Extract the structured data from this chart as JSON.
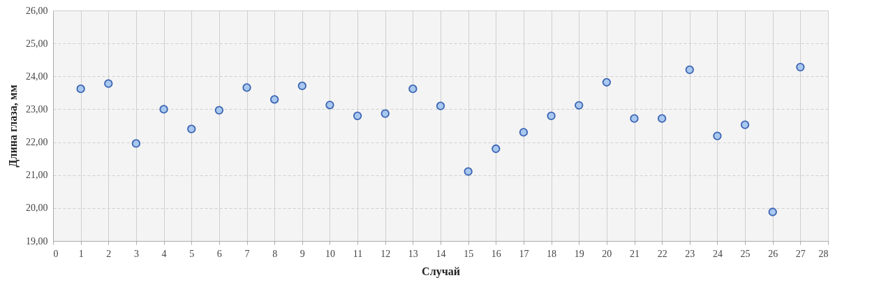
{
  "chart_data": {
    "type": "scatter",
    "xlabel": "Случай",
    "ylabel": "Длина глаза, мм",
    "x": [
      1,
      2,
      3,
      4,
      5,
      6,
      7,
      8,
      9,
      10,
      11,
      12,
      13,
      14,
      15,
      16,
      17,
      18,
      19,
      20,
      21,
      22,
      23,
      24,
      25,
      26,
      27
    ],
    "series": [
      {
        "color": "#a9c8ef",
        "values": [
          23.62,
          23.78,
          21.96,
          23.0,
          22.4,
          22.97,
          23.66,
          23.3,
          23.71,
          23.13,
          22.8,
          22.87,
          23.62,
          23.1,
          21.11,
          21.8,
          22.3,
          22.8,
          23.12,
          23.82,
          22.72,
          22.72,
          24.2,
          22.19,
          22.53,
          19.88,
          24.28
        ]
      }
    ],
    "xlim": [
      0,
      28
    ],
    "xticks": [
      0,
      1,
      2,
      3,
      4,
      5,
      6,
      7,
      8,
      9,
      10,
      11,
      12,
      13,
      14,
      15,
      16,
      17,
      18,
      19,
      20,
      21,
      22,
      23,
      24,
      25,
      26,
      27,
      28
    ],
    "ylim": [
      19,
      26
    ],
    "yticks": [
      {
        "value": 19,
        "label": "19,00"
      },
      {
        "value": 20,
        "label": "20,00"
      },
      {
        "value": 21,
        "label": "21,00"
      },
      {
        "value": 22,
        "label": "22,00"
      },
      {
        "value": 23,
        "label": "23,00"
      },
      {
        "value": 24,
        "label": "24,00"
      },
      {
        "value": 25,
        "label": "25,00"
      },
      {
        "value": 26,
        "label": "26,00"
      }
    ],
    "grid": true,
    "marker": "circle",
    "legend": false
  }
}
